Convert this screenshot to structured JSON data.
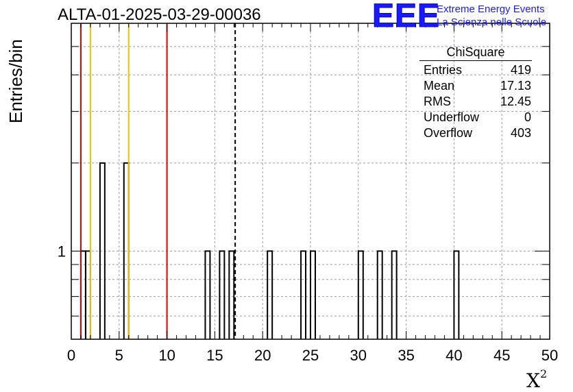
{
  "title": "ALTA-01-2025-03-29-00036",
  "logo": {
    "mark": "EEE",
    "line1": "Extreme Energy Events",
    "line2": "La Scienza nelle Scuole",
    "color": "#1a1aff"
  },
  "stats": {
    "title": "ChiSquare",
    "rows": [
      {
        "label": "Entries",
        "value": "419"
      },
      {
        "label": "Mean",
        "value": "17.13"
      },
      {
        "label": "RMS",
        "value": "12.45"
      },
      {
        "label": "Underflow",
        "value": "0"
      },
      {
        "label": "Overflow",
        "value": "403"
      }
    ]
  },
  "chart_data": {
    "type": "histogram",
    "title": "ALTA-01-2025-03-29-00036",
    "xlabel": "X",
    "xlabel_superscript": "2",
    "ylabel": "Entries/bin",
    "xlim": [
      0,
      50
    ],
    "ylog": true,
    "ylim": [
      0.5,
      6
    ],
    "xticks": [
      "0",
      "5",
      "10",
      "15",
      "20",
      "25",
      "30",
      "35",
      "40",
      "45",
      "50"
    ],
    "yticks": [
      "1"
    ],
    "grid": true,
    "bin_width": 0.5,
    "bins": [
      {
        "x0": 1.0,
        "count": 1
      },
      {
        "x0": 1.5,
        "count": 1
      },
      {
        "x0": 3.0,
        "count": 2
      },
      {
        "x0": 5.5,
        "count": 2
      },
      {
        "x0": 14.0,
        "count": 1
      },
      {
        "x0": 15.5,
        "count": 1
      },
      {
        "x0": 16.5,
        "count": 1
      },
      {
        "x0": 20.5,
        "count": 1
      },
      {
        "x0": 24.0,
        "count": 1
      },
      {
        "x0": 25.0,
        "count": 1
      },
      {
        "x0": 30.0,
        "count": 1
      },
      {
        "x0": 32.0,
        "count": 1
      },
      {
        "x0": 33.5,
        "count": 1
      },
      {
        "x0": 40.0,
        "count": 1
      }
    ],
    "reference_lines": [
      {
        "x": 1.0,
        "color": "#dd0000",
        "style": "solid"
      },
      {
        "x": 2.0,
        "color": "#f2c200",
        "style": "solid"
      },
      {
        "x": 6.0,
        "color": "#f2c200",
        "style": "solid"
      },
      {
        "x": 10.0,
        "color": "#dd0000",
        "style": "solid"
      },
      {
        "x": 17.13,
        "color": "#000000",
        "style": "dashed"
      }
    ]
  }
}
